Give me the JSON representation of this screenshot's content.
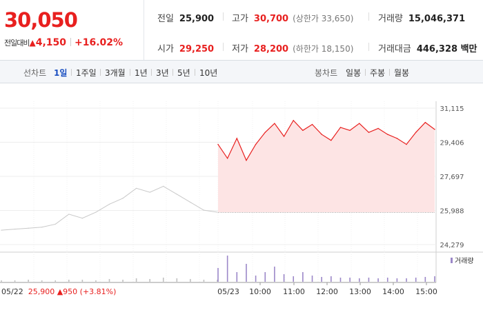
{
  "summary": {
    "price": "30,050",
    "change_label": "전일대비",
    "change_arrow": "▲",
    "change": "4,150",
    "change_pct": "+16.02%"
  },
  "stats": {
    "prev_close": {
      "label": "전일",
      "value": "25,900"
    },
    "high": {
      "label": "고가",
      "value": "30,700",
      "sub": "(상한가 33,650)"
    },
    "volume": {
      "label": "거래량",
      "value": "15,046,371"
    },
    "open": {
      "label": "시가",
      "value": "29,250"
    },
    "low": {
      "label": "저가",
      "value": "28,200",
      "sub": "(하한가 18,150)"
    },
    "amount": {
      "label": "거래대금",
      "value": "446,328 백만"
    }
  },
  "toolbar": {
    "line_chart_label": "선차트",
    "periods": [
      "1일",
      "1주일",
      "3개월",
      "1년",
      "3년",
      "5년",
      "10년"
    ],
    "active_period": "1일",
    "candle_label": "봉차트",
    "candle_periods": [
      "일봉",
      "주봉",
      "월봉"
    ]
  },
  "colors": {
    "up": "#e8201f",
    "prev_line": "#c8c8c8",
    "fill": "#fde4e4",
    "volume_today": "#9b87c8",
    "volume_prev": "#c0c0c0",
    "active": "#1a4fc1"
  },
  "volume_legend": "거래량",
  "footer": {
    "prev_date": "05/22",
    "prev_close": "25,900",
    "prev_arrow": "▲",
    "prev_change": "950",
    "prev_pct": "(+3.81%)"
  },
  "chart_data": {
    "type": "line",
    "y_ticks": [
      "31,115",
      "29,406",
      "27,697",
      "25,988",
      "24,279"
    ],
    "ylim": [
      24279,
      31115
    ],
    "reference_line": 25900,
    "x_labels": [
      "05/23",
      "10:00",
      "11:00",
      "12:00",
      "13:00",
      "14:00",
      "15:00"
    ],
    "series": [
      {
        "values": [
          25000,
          25050,
          25100,
          25150,
          25300,
          25800,
          25600,
          25900,
          26300,
          26600,
          27100,
          26900,
          27200,
          26800,
          26400,
          26000,
          25900
        ]
      },
      {
        "values": [
          29300,
          28600,
          29600,
          28500,
          29300,
          29900,
          30350,
          29700,
          30500,
          30000,
          30300,
          29800,
          29500,
          30150,
          30000,
          30350,
          29900,
          30100,
          29800,
          29600,
          29300,
          29900,
          30400,
          30050
        ]
      }
    ],
    "volume": {
      "prev": [
        2,
        2,
        3,
        2,
        2,
        3,
        3,
        2,
        4,
        3,
        5,
        4,
        6,
        5,
        4,
        3,
        3
      ],
      "today": [
        20,
        38,
        14,
        26,
        9,
        14,
        22,
        11,
        8,
        14,
        9,
        7,
        8,
        6,
        6,
        5,
        6,
        5,
        6,
        5,
        5,
        6,
        7,
        8
      ]
    }
  }
}
